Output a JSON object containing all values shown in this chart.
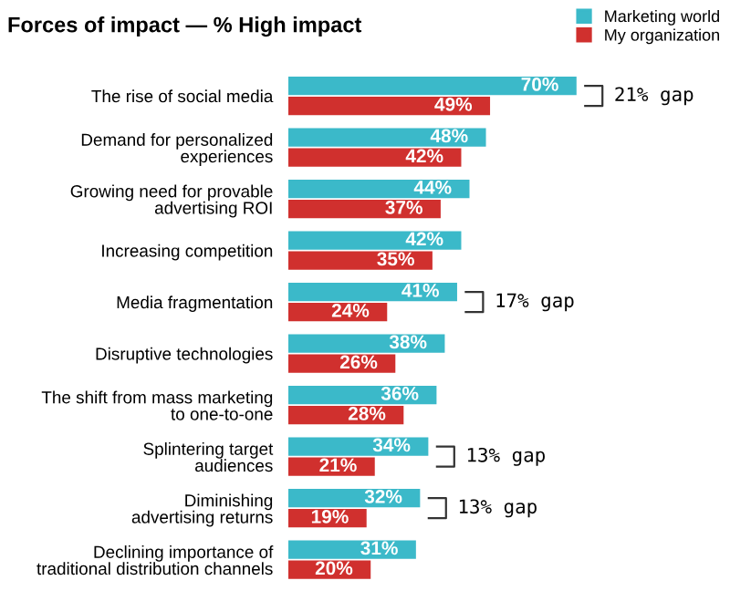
{
  "chart_data": {
    "type": "bar",
    "orientation": "horizontal",
    "title": "Forces of impact — % High impact",
    "categories": [
      "The rise of social media",
      "Demand for personalized\nexperiences",
      "Growing need for provable\nadvertising ROI",
      "Increasing competition",
      "Media fragmentation",
      "Disruptive technologies",
      "The shift from mass marketing\nto one-to-one",
      "Splintering target\naudiences",
      "Diminishing\nadvertising returns",
      "Declining importance of\ntraditional distribution channels"
    ],
    "series": [
      {
        "name": "Marketing world",
        "color": "#3bb9c9",
        "values": [
          70,
          48,
          44,
          42,
          41,
          38,
          36,
          34,
          32,
          31
        ],
        "value_labels": [
          "70%",
          "48%",
          "44%",
          "42%",
          "41%",
          "38%",
          "36%",
          "34%",
          "32%",
          "31%"
        ]
      },
      {
        "name": "My organization",
        "color": "#d0302e",
        "values": [
          49,
          42,
          37,
          35,
          24,
          26,
          28,
          21,
          19,
          20
        ],
        "value_labels": [
          "49%",
          "42%",
          "37%",
          "35%",
          "24%",
          "26%",
          "28%",
          "21%",
          "19%",
          "20%"
        ]
      }
    ],
    "annotations": [
      {
        "text": "21% gap",
        "x": 70,
        "y": "The rise of social media"
      },
      {
        "text": "17% gap",
        "x": 41,
        "y": "Media fragmentation"
      },
      {
        "text": "13% gap",
        "x": 34,
        "y": "Splintering target\naudiences"
      },
      {
        "text": "13% gap",
        "x": 32,
        "y": "Diminishing\nadvertising returns"
      }
    ],
    "legend": "top right",
    "grid": false
  }
}
